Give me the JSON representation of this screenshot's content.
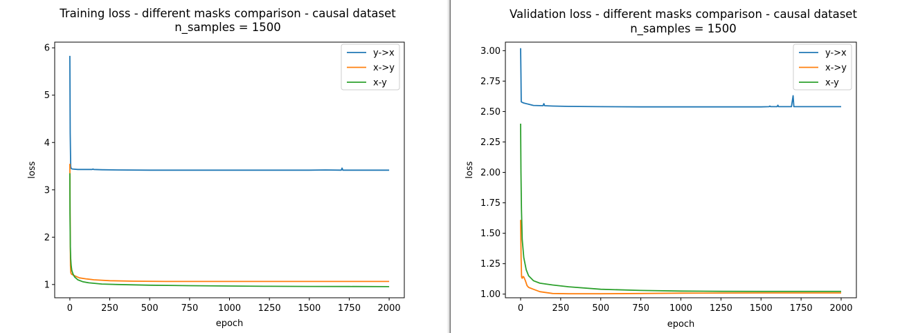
{
  "chart_data": [
    {
      "type": "line",
      "title": "Training loss - different masks comparison - causal dataset",
      "subtitle": "n_samples = 1500",
      "xlabel": "epoch",
      "ylabel": "loss",
      "xlim": [
        -95,
        2095
      ],
      "ylim": [
        0.72,
        6.12
      ],
      "xticks": [
        0,
        250,
        500,
        750,
        1000,
        1250,
        1500,
        1750,
        2000
      ],
      "yticks": [
        1,
        2,
        3,
        4,
        5,
        6
      ],
      "ytick_labels": [
        "1",
        "2",
        "3",
        "4",
        "5",
        "6"
      ],
      "grid": false,
      "legend": "top-right",
      "series": [
        {
          "name": "y->x",
          "color": "#1f77b4",
          "x": [
            0,
            2,
            5,
            8,
            15,
            50,
            100,
            140,
            145,
            150,
            200,
            300,
            500,
            750,
            1000,
            1250,
            1500,
            1600,
            1700,
            1705,
            1710,
            1750,
            1800,
            2000
          ],
          "y": [
            5.83,
            4.2,
            3.5,
            3.45,
            3.44,
            3.43,
            3.43,
            3.43,
            3.44,
            3.43,
            3.425,
            3.42,
            3.415,
            3.415,
            3.415,
            3.415,
            3.415,
            3.42,
            3.415,
            3.46,
            3.415,
            3.415,
            3.415,
            3.415
          ]
        },
        {
          "name": "x->y",
          "color": "#ff7f0e",
          "x": [
            0,
            2,
            4,
            6,
            10,
            20,
            40,
            60,
            100,
            150,
            250,
            400,
            600,
            1000,
            1500,
            2000
          ],
          "y": [
            3.55,
            2.2,
            1.4,
            1.25,
            1.22,
            1.2,
            1.17,
            1.14,
            1.12,
            1.1,
            1.08,
            1.07,
            1.065,
            1.065,
            1.065,
            1.065
          ]
        },
        {
          "name": "x-y",
          "color": "#2ca02c",
          "x": [
            0,
            1,
            3,
            5,
            8,
            12,
            20,
            30,
            50,
            80,
            120,
            200,
            300,
            500,
            750,
            1000,
            1250,
            1500,
            1750,
            2000
          ],
          "y": [
            3.35,
            2.5,
            1.8,
            1.55,
            1.4,
            1.3,
            1.22,
            1.16,
            1.1,
            1.06,
            1.035,
            1.01,
            1.0,
            0.985,
            0.975,
            0.968,
            0.963,
            0.96,
            0.958,
            0.955
          ]
        }
      ]
    },
    {
      "type": "line",
      "title": "Validation loss - different masks comparison - causal dataset",
      "subtitle": "n_samples = 1500",
      "xlabel": "epoch",
      "ylabel": "loss",
      "xlim": [
        -95,
        2095
      ],
      "ylim": [
        0.97,
        3.07
      ],
      "xticks": [
        0,
        250,
        500,
        750,
        1000,
        1250,
        1500,
        1750,
        2000
      ],
      "yticks": [
        1.0,
        1.25,
        1.5,
        1.75,
        2.0,
        2.25,
        2.5,
        2.75,
        3.0
      ],
      "ytick_labels": [
        "1.00",
        "1.25",
        "1.50",
        "1.75",
        "2.00",
        "2.25",
        "2.50",
        "2.75",
        "3.00"
      ],
      "grid": false,
      "legend": "top-right",
      "series": [
        {
          "name": "y->x",
          "color": "#1f77b4",
          "x": [
            0,
            2,
            4,
            10,
            20,
            50,
            80,
            140,
            145,
            150,
            200,
            300,
            500,
            750,
            1000,
            1250,
            1500,
            1550,
            1555,
            1560,
            1600,
            1605,
            1610,
            1690,
            1700,
            1705,
            1710,
            1750,
            1800,
            2000
          ],
          "y": [
            3.02,
            2.8,
            2.58,
            2.575,
            2.57,
            2.56,
            2.55,
            2.548,
            2.565,
            2.548,
            2.545,
            2.542,
            2.54,
            2.538,
            2.538,
            2.538,
            2.538,
            2.54,
            2.545,
            2.54,
            2.54,
            2.552,
            2.54,
            2.54,
            2.63,
            2.54,
            2.54,
            2.54,
            2.54,
            2.54
          ]
        },
        {
          "name": "x->y",
          "color": "#ff7f0e",
          "x": [
            0,
            3,
            6,
            10,
            15,
            20,
            30,
            40,
            50,
            80,
            120,
            200,
            300,
            500,
            750,
            1000,
            1500,
            2000
          ],
          "y": [
            1.61,
            1.3,
            1.14,
            1.13,
            1.145,
            1.14,
            1.11,
            1.07,
            1.055,
            1.04,
            1.02,
            1.005,
            1.003,
            1.003,
            1.005,
            1.008,
            1.01,
            1.01
          ]
        },
        {
          "name": "x-y",
          "color": "#2ca02c",
          "x": [
            0,
            2,
            5,
            10,
            20,
            35,
            50,
            80,
            120,
            200,
            300,
            500,
            750,
            1000,
            1250,
            1500,
            1750,
            2000
          ],
          "y": [
            2.4,
            2.0,
            1.7,
            1.45,
            1.3,
            1.2,
            1.15,
            1.11,
            1.09,
            1.075,
            1.06,
            1.04,
            1.03,
            1.025,
            1.023,
            1.022,
            1.022,
            1.022
          ]
        }
      ]
    }
  ]
}
